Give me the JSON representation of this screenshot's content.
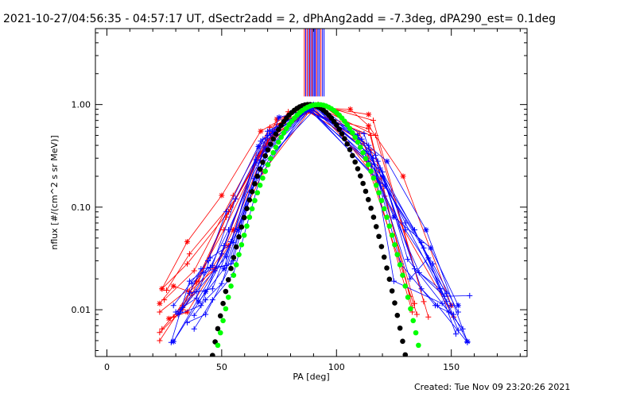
{
  "window": {
    "title": "2021-10-27/04:56:35 - 04:57:17 UT, dSectr2add = 2, dPhAng2add = -7.3deg, dPA290_est=  0.1deg",
    "created": "Created: Tue Nov 09 23:20:26 2021"
  },
  "chart_data": {
    "type": "scatter",
    "xlabel": "PA [deg]",
    "ylabel": "nflux [#/(cm^2 s sr MeV)]",
    "xlim": [
      -5,
      183
    ],
    "ylim": [
      0.0035,
      5.5
    ],
    "yscale": "log",
    "grid": false,
    "xticks": [
      0,
      50,
      100,
      150
    ],
    "xtick_labels": [
      "0",
      "50",
      "100",
      "150"
    ],
    "yticks": [
      0.01,
      0.1,
      1.0
    ],
    "ytick_labels": [
      "0.01",
      "0.10",
      "1.00"
    ],
    "colors": {
      "red": "#ff0000",
      "blue": "#0000ff",
      "black": "#000000",
      "green": "#00ff00"
    },
    "vertical_lines": {
      "x": [
        86,
        86.6,
        87.2,
        87.8,
        88.3,
        88.8,
        89.3,
        89.8,
        90.3,
        90.8,
        91.3,
        91.9,
        92.5,
        93.2,
        93.9,
        94.6
      ],
      "colors": [
        "#ff0000",
        "#0000ff",
        "#ff0000",
        "#0000ff",
        "#ff0000",
        "#0000ff",
        "#ff0000",
        "#0000ff",
        "#0000ff",
        "#0000ff",
        "#ff0000",
        "#0000ff",
        "#0000ff",
        "#ff0000",
        "#0000ff",
        "#0000ff"
      ],
      "y_from": 1.2,
      "y_to": 5.5
    },
    "series": [
      {
        "color": "red",
        "marker": "+",
        "x": [
          24,
          35,
          53,
          71,
          88,
          115,
          133
        ],
        "y": [
          0.016,
          0.028,
          0.09,
          0.53,
          0.86,
          0.5,
          0.0105
        ]
      },
      {
        "color": "red",
        "marker": "+",
        "x": [
          25,
          38,
          55,
          71,
          90,
          113,
          135
        ],
        "y": [
          0.0125,
          0.024,
          0.13,
          0.6,
          0.93,
          0.28,
          0.009
        ]
      },
      {
        "color": "red",
        "marker": "+",
        "x": [
          23,
          40,
          52,
          70,
          92,
          116,
          138
        ],
        "y": [
          0.0095,
          0.019,
          0.08,
          0.45,
          1.0,
          0.7,
          0.012
        ]
      },
      {
        "color": "red",
        "marker": "+",
        "x": [
          24,
          37,
          54,
          72,
          89,
          112,
          133
        ],
        "y": [
          0.0065,
          0.014,
          0.1,
          0.5,
          0.89,
          0.42,
          0.0095
        ]
      },
      {
        "color": "red",
        "marker": "+",
        "x": [
          23,
          33,
          51,
          69,
          87,
          114,
          132
        ],
        "y": [
          0.005,
          0.011,
          0.06,
          0.4,
          0.84,
          0.58,
          0.0135
        ]
      },
      {
        "color": "red",
        "marker": "+",
        "x": [
          26,
          36,
          56,
          74,
          91,
          117,
          140
        ],
        "y": [
          0.0155,
          0.035,
          0.12,
          0.64,
          0.96,
          0.5,
          0.0085
        ]
      },
      {
        "color": "red",
        "marker": "+",
        "x": [
          29,
          39,
          53,
          68,
          86,
          115,
          134
        ],
        "y": [
          0.0085,
          0.019,
          0.09,
          0.35,
          0.9,
          0.36,
          0.0115
        ]
      },
      {
        "color": "red",
        "marker": "*",
        "x": [
          24,
          35,
          50,
          67,
          85,
          106,
          114,
          129,
          150
        ],
        "y": [
          0.016,
          0.046,
          0.13,
          0.55,
          0.94,
          0.9,
          0.62,
          0.2,
          0.011
        ]
      },
      {
        "color": "red",
        "marker": "*",
        "x": [
          27,
          35,
          53,
          68,
          90,
          114
        ],
        "y": [
          0.0082,
          0.0095,
          0.042,
          0.22,
          0.97,
          0.8
        ]
      },
      {
        "color": "red",
        "marker": "*",
        "x": [
          23,
          29,
          36,
          47,
          55,
          74,
          92,
          118
        ],
        "y": [
          0.0115,
          0.017,
          0.015,
          0.025,
          0.06,
          0.72,
          1.0,
          0.18
        ]
      },
      {
        "color": "red",
        "marker": "+",
        "x": [
          23,
          33,
          50,
          66,
          79,
          95,
          110,
          121,
          151
        ],
        "y": [
          0.006,
          0.01,
          0.035,
          0.32,
          0.85,
          0.95,
          0.52,
          0.128,
          0.0085
        ]
      },
      {
        "color": "blue",
        "marker": "+",
        "x": [
          30,
          39,
          45,
          55,
          71,
          88,
          120,
          137,
          144,
          157
        ],
        "y": [
          0.0095,
          0.013,
          0.032,
          0.045,
          0.55,
          0.92,
          0.2,
          0.016,
          0.011,
          0.0048
        ]
      },
      {
        "color": "blue",
        "marker": "+",
        "x": [
          32,
          45,
          53,
          69,
          86,
          112,
          132,
          140,
          152
        ],
        "y": [
          0.0095,
          0.026,
          0.06,
          0.38,
          0.88,
          0.52,
          0.02,
          0.032,
          0.0058
        ]
      },
      {
        "color": "blue",
        "marker": "+",
        "x": [
          28,
          36,
          46,
          56,
          70,
          90,
          118,
          134,
          145,
          157
        ],
        "y": [
          0.0048,
          0.019,
          0.027,
          0.12,
          0.5,
          0.95,
          0.28,
          0.025,
          0.016,
          0.0049
        ]
      },
      {
        "color": "blue",
        "marker": "+",
        "x": [
          31,
          41,
          51,
          65,
          88,
          114,
          128,
          143,
          151
        ],
        "y": [
          0.009,
          0.011,
          0.042,
          0.29,
          0.93,
          0.4,
          0.028,
          0.011,
          0.009
        ]
      },
      {
        "color": "blue",
        "marker": "+",
        "x": [
          36,
          46,
          54,
          66,
          92,
          117,
          130,
          148
        ],
        "y": [
          0.0145,
          0.016,
          0.046,
          0.24,
          0.97,
          0.32,
          0.06,
          0.0145
        ]
      },
      {
        "color": "blue",
        "marker": "+",
        "x": [
          29,
          44,
          52,
          67,
          89,
          119,
          138,
          150
        ],
        "y": [
          0.011,
          0.03,
          0.09,
          0.44,
          0.93,
          0.24,
          0.04,
          0.011
        ]
      },
      {
        "color": "blue",
        "marker": "+",
        "x": [
          33,
          41,
          52,
          64,
          90,
          116,
          125,
          146,
          155
        ],
        "y": [
          0.0105,
          0.025,
          0.027,
          0.19,
          1.0,
          0.3,
          0.019,
          0.0115,
          0.0065
        ]
      },
      {
        "color": "blue",
        "marker": "+",
        "x": [
          38,
          46,
          55,
          70,
          88,
          121,
          142,
          153
        ],
        "y": [
          0.0065,
          0.0125,
          0.022,
          0.36,
          0.9,
          0.16,
          0.028,
          0.0095
        ]
      },
      {
        "color": "blue",
        "marker": "+",
        "x": [
          29,
          47,
          50,
          68,
          91,
          115,
          137,
          153
        ],
        "y": [
          0.0049,
          0.024,
          0.035,
          0.46,
          0.96,
          0.26,
          0.045,
          0.0063
        ]
      },
      {
        "color": "blue",
        "marker": "+",
        "x": [
          37,
          42,
          54,
          62,
          87,
          120,
          131,
          149
        ],
        "y": [
          0.018,
          0.023,
          0.028,
          0.14,
          0.92,
          0.22,
          0.031,
          0.0095
        ]
      },
      {
        "color": "blue",
        "marker": "+",
        "x": [
          38,
          43,
          50,
          72,
          88,
          119,
          136,
          147,
          158
        ],
        "y": [
          0.0088,
          0.0125,
          0.018,
          0.55,
          0.94,
          0.17,
          0.023,
          0.0135,
          0.0137
        ]
      },
      {
        "color": "blue",
        "marker": "*",
        "x": [
          29,
          43,
          57,
          75,
          93,
          122,
          139,
          157
        ],
        "y": [
          0.0049,
          0.015,
          0.06,
          0.75,
          0.97,
          0.28,
          0.06,
          0.0049
        ]
      },
      {
        "color": "blue",
        "marker": "*",
        "x": [
          40,
          51,
          66,
          86,
          109,
          125,
          141,
          153
        ],
        "y": [
          0.012,
          0.025,
          0.39,
          0.9,
          0.5,
          0.08,
          0.04,
          0.011
        ]
      },
      {
        "color": "blue",
        "marker": "+",
        "x": [
          35,
          43,
          55,
          70,
          89,
          113,
          134,
          148
        ],
        "y": [
          0.0075,
          0.009,
          0.03,
          0.55,
          0.93,
          0.35,
          0.06,
          0.012
        ]
      },
      {
        "color": "blue",
        "marker": "+",
        "x": [
          31,
          39,
          52,
          65,
          90,
          111,
          130,
          145
        ],
        "y": [
          0.0092,
          0.015,
          0.033,
          0.27,
          0.96,
          0.46,
          0.07,
          0.016
        ]
      }
    ],
    "model_curves": [
      {
        "color": "black",
        "marker": "dot",
        "center": 88,
        "sigma": 17.7
      },
      {
        "color": "green",
        "marker": "dot",
        "center": 92,
        "sigma": 18.8
      }
    ]
  }
}
